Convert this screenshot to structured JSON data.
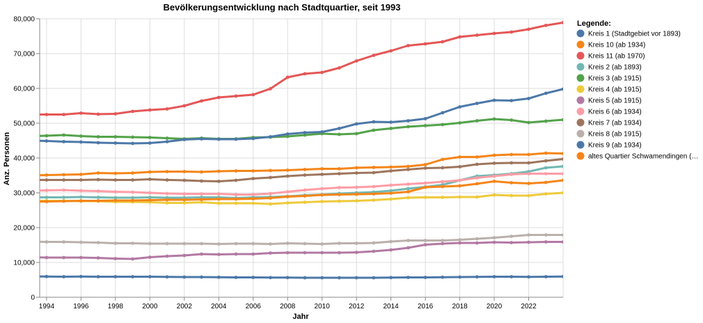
{
  "chart_data": {
    "type": "line",
    "title": "Bevölkerungsentwicklung nach Stadtquartier, seit 1993",
    "xlabel": "Jahr",
    "ylabel": "Anz. Personen",
    "xlim": [
      1993.6,
      2024
    ],
    "ylim": [
      0,
      80000
    ],
    "x_ticks": [
      1994,
      1996,
      1998,
      2000,
      2002,
      2004,
      2006,
      2008,
      2010,
      2012,
      2014,
      2016,
      2018,
      2020,
      2022
    ],
    "y_ticks": [
      0,
      10000,
      20000,
      30000,
      40000,
      50000,
      60000,
      70000,
      80000
    ],
    "y_tick_labels": [
      "0",
      "10,000",
      "20,000",
      "30,000",
      "40,000",
      "50,000",
      "60,000",
      "70,000",
      "80,000"
    ],
    "grid": true,
    "legend_position": "right",
    "legend_title": "Legende:",
    "x": [
      1993,
      1994,
      1995,
      1996,
      1997,
      1998,
      1999,
      2000,
      2001,
      2002,
      2003,
      2004,
      2005,
      2006,
      2007,
      2008,
      2009,
      2010,
      2011,
      2012,
      2013,
      2014,
      2015,
      2016,
      2017,
      2018,
      2019,
      2020,
      2021,
      2022,
      2023,
      2024
    ],
    "series": [
      {
        "name": "Kreis 1 (Stadtgebiet vor 1893)",
        "color": "#4c78a8",
        "values": [
          6000,
          5950,
          5900,
          5950,
          5900,
          5900,
          5900,
          5900,
          5850,
          5800,
          5800,
          5750,
          5700,
          5700,
          5650,
          5650,
          5600,
          5600,
          5600,
          5600,
          5600,
          5650,
          5700,
          5700,
          5750,
          5800,
          5850,
          5900,
          5900,
          5850,
          5900,
          5950
        ]
      },
      {
        "name": "Kreis 10 (ab 1934)",
        "color": "#f58518",
        "values": [
          35000,
          35100,
          35200,
          35300,
          35700,
          35600,
          35700,
          36000,
          36100,
          36100,
          36000,
          36200,
          36300,
          36300,
          36400,
          36500,
          36700,
          36900,
          36900,
          37200,
          37300,
          37400,
          37600,
          38100,
          39600,
          40300,
          40300,
          40800,
          41000,
          41000,
          41400,
          41300
        ]
      },
      {
        "name": "Kreis 11 (ab 1970)",
        "color": "#e45756",
        "values": [
          52500,
          52500,
          52500,
          52900,
          52600,
          52700,
          53400,
          53800,
          54100,
          55000,
          56400,
          57400,
          57800,
          58200,
          59900,
          63200,
          64200,
          64600,
          65900,
          67900,
          69500,
          70800,
          72300,
          72800,
          73400,
          74800,
          75300,
          75800,
          76200,
          77000,
          78100,
          78900
        ]
      },
      {
        "name": "Kreis 2 (ab 1893)",
        "color": "#72b7b2",
        "values": [
          28700,
          28700,
          28700,
          28800,
          28700,
          28600,
          28600,
          28700,
          28600,
          28600,
          28700,
          28700,
          28500,
          28700,
          28800,
          29000,
          29300,
          29500,
          29800,
          30000,
          30200,
          30600,
          31200,
          31700,
          32300,
          33600,
          34800,
          35100,
          35500,
          36100,
          37200,
          37600
        ]
      },
      {
        "name": "Kreis 3 (ab 1915)",
        "color": "#54a24b",
        "values": [
          46300,
          46400,
          46600,
          46300,
          46100,
          46100,
          46000,
          45900,
          45700,
          45500,
          45700,
          45500,
          45500,
          45900,
          46000,
          46200,
          46600,
          47000,
          46800,
          47000,
          48000,
          48500,
          49000,
          49300,
          49600,
          50100,
          50700,
          51200,
          50900,
          50200,
          50600,
          51000
        ]
      },
      {
        "name": "Kreis 4 (ab 1915)",
        "color": "#eeca3b",
        "values": [
          27700,
          27700,
          27700,
          27600,
          27600,
          27400,
          27400,
          27300,
          27100,
          27100,
          27300,
          27000,
          27000,
          27000,
          26800,
          27100,
          27300,
          27500,
          27600,
          27700,
          27900,
          28200,
          28600,
          28700,
          28700,
          28800,
          28800,
          29400,
          29200,
          29200,
          29700,
          30000
        ]
      },
      {
        "name": "Kreis 5 (ab 1915)",
        "color": "#b279a2",
        "values": [
          11500,
          11400,
          11400,
          11400,
          11300,
          11100,
          11000,
          11500,
          11800,
          12000,
          12400,
          12300,
          12400,
          12400,
          12700,
          12800,
          12800,
          12800,
          12800,
          12900,
          13200,
          13600,
          14200,
          15100,
          15400,
          15600,
          15600,
          15800,
          15700,
          15800,
          15900,
          15900
        ]
      },
      {
        "name": "Kreis 6 (ab 1934)",
        "color": "#ff9da6",
        "values": [
          30600,
          30700,
          30800,
          30600,
          30500,
          30300,
          30200,
          30000,
          29800,
          29700,
          29700,
          29700,
          29500,
          29500,
          29800,
          30300,
          30800,
          31200,
          31500,
          31600,
          31800,
          32200,
          32500,
          32800,
          33200,
          33600,
          34300,
          34800,
          35300,
          35500,
          35500,
          35500
        ]
      },
      {
        "name": "Kreis 7 (ab 1934)",
        "color": "#9d755d",
        "values": [
          33700,
          33700,
          33700,
          33700,
          33800,
          33700,
          33700,
          33900,
          33700,
          33600,
          33400,
          33300,
          33600,
          34100,
          34400,
          34800,
          35100,
          35300,
          35500,
          35700,
          35800,
          36300,
          36700,
          37100,
          37200,
          37500,
          38200,
          38500,
          38600,
          38600,
          39200,
          39700
        ]
      },
      {
        "name": "Kreis 8 (ab 1915)",
        "color": "#bab0ac",
        "values": [
          16000,
          15900,
          15900,
          15800,
          15700,
          15500,
          15500,
          15400,
          15400,
          15400,
          15400,
          15300,
          15400,
          15400,
          15300,
          15500,
          15400,
          15300,
          15500,
          15500,
          15600,
          16000,
          16300,
          16300,
          16300,
          16500,
          16800,
          17100,
          17500,
          17900,
          17900,
          17900
        ]
      },
      {
        "name": "Kreis 9 (ab 1934)",
        "color": "#4c78a8",
        "values": [
          45000,
          44900,
          44700,
          44600,
          44400,
          44300,
          44200,
          44300,
          44700,
          45300,
          45500,
          45400,
          45400,
          45600,
          46100,
          46900,
          47300,
          47500,
          48500,
          49800,
          50400,
          50300,
          50700,
          51300,
          53000,
          54700,
          55700,
          56600,
          56500,
          57100,
          58600,
          59800
        ]
      },
      {
        "name": "altes Quartier Schwamendingen (…",
        "color": "#f58518",
        "values": [
          27500,
          27500,
          27600,
          27700,
          27700,
          27800,
          27800,
          27900,
          28000,
          28000,
          28100,
          28200,
          28200,
          28300,
          28500,
          28900,
          29100,
          29400,
          29500,
          29600,
          29700,
          29900,
          30300,
          31600,
          31800,
          32000,
          32600,
          33300,
          32900,
          32700,
          33000,
          33600
        ]
      }
    ]
  }
}
